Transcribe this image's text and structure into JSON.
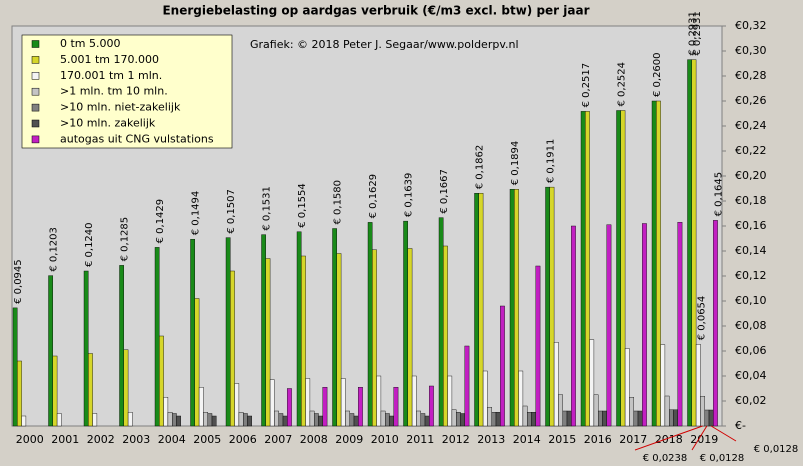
{
  "chart_data": {
    "type": "bar",
    "title": "Energiebelasting  op aardgas verbruik (€/m3 excl. btw) per jaar",
    "annotation": "Grafiek:  © 2018  Peter J. Segaar/www.polderpv.nl",
    "categories": [
      "2000",
      "2001",
      "2002",
      "2003",
      "2004",
      "2005",
      "2006",
      "2007",
      "2008",
      "2009",
      "2010",
      "2011",
      "2012",
      "2013",
      "2014",
      "2015",
      "2016",
      "2017",
      "2018",
      "2019"
    ],
    "series": [
      {
        "name": "0  tm 5.000",
        "color": "#198a19",
        "values": [
          0.0945,
          0.1203,
          0.124,
          0.1285,
          0.1429,
          0.1494,
          0.1507,
          0.1531,
          0.1554,
          0.158,
          0.1629,
          0.1639,
          0.1667,
          0.1862,
          0.1894,
          0.1911,
          0.2517,
          0.2524,
          0.26,
          0.2931
        ],
        "value_labels": [
          "€ 0,0945",
          "€ 0,1203",
          "€ 0,1240",
          "€ 0,1285",
          "€ 0,1429",
          "€ 0,1494",
          "€ 0,1507",
          "€ 0,1531",
          "€ 0,1554",
          "€ 0,1580",
          "€ 0,1629",
          "€ 0,1639",
          "€ 0,1667",
          "€ 0,1862",
          "€ 0,1894",
          "€ 0,1911",
          "€ 0,2517",
          "€ 0,2524",
          "€ 0,2600",
          "€ 0,2931"
        ]
      },
      {
        "name": "5.001 tm 170.000",
        "color": "#d6d62a",
        "values": [
          0.052,
          0.056,
          0.058,
          0.061,
          0.072,
          0.102,
          0.124,
          0.134,
          0.136,
          0.138,
          0.141,
          0.142,
          0.144,
          0.1862,
          0.1894,
          0.1911,
          0.2517,
          0.2524,
          0.26,
          0.2931
        ],
        "value_labels": [
          null,
          null,
          null,
          null,
          null,
          null,
          null,
          null,
          null,
          null,
          null,
          null,
          null,
          null,
          null,
          null,
          null,
          null,
          null,
          "€ 0,2931"
        ]
      },
      {
        "name": "170.001 tm 1 mln.",
        "color": "#f4f4f4",
        "values": [
          0.008,
          0.01,
          0.01,
          0.011,
          0.023,
          0.031,
          0.034,
          0.037,
          0.038,
          0.038,
          0.04,
          0.04,
          0.04,
          0.044,
          0.044,
          0.067,
          0.069,
          0.062,
          0.065,
          0.0654
        ],
        "value_labels": [
          null,
          null,
          null,
          null,
          null,
          null,
          null,
          null,
          null,
          null,
          null,
          null,
          null,
          null,
          null,
          null,
          null,
          null,
          null,
          "€ 0,0654"
        ]
      },
      {
        "name": ">1 mln. tm 10 mln.",
        "color": "#c4c4c4",
        "values": [
          null,
          null,
          null,
          null,
          0.011,
          0.011,
          0.011,
          0.012,
          0.012,
          0.012,
          0.012,
          0.012,
          0.013,
          0.015,
          0.016,
          0.025,
          0.025,
          0.023,
          0.024,
          0.0238
        ],
        "value_labels": [
          null,
          null,
          null,
          null,
          null,
          null,
          null,
          null,
          null,
          null,
          null,
          null,
          null,
          null,
          null,
          null,
          null,
          null,
          null,
          "€ 0,0238"
        ]
      },
      {
        "name": ">10 mln. niet-zakelijk",
        "color": "#808080",
        "values": [
          null,
          null,
          null,
          null,
          0.01,
          0.01,
          0.01,
          0.01,
          0.01,
          0.01,
          0.01,
          0.01,
          0.011,
          0.011,
          0.011,
          0.012,
          0.012,
          0.012,
          0.013,
          0.0128
        ],
        "value_labels": [
          null,
          null,
          null,
          null,
          null,
          null,
          null,
          null,
          null,
          null,
          null,
          null,
          null,
          null,
          null,
          null,
          null,
          null,
          null,
          "€ 0,0128"
        ]
      },
      {
        "name": ">10 mln. zakelijk",
        "color": "#505050",
        "values": [
          null,
          null,
          null,
          null,
          0.008,
          0.008,
          0.008,
          0.008,
          0.008,
          0.008,
          0.008,
          0.008,
          0.01,
          0.011,
          0.011,
          0.012,
          0.012,
          0.012,
          0.013,
          0.0128
        ],
        "value_labels": [
          null,
          null,
          null,
          null,
          null,
          null,
          null,
          null,
          null,
          null,
          null,
          null,
          null,
          null,
          null,
          null,
          null,
          null,
          null,
          "€ 0,0128"
        ]
      },
      {
        "name": "autogas uit CNG vulstations",
        "color": "#c21fc2",
        "values": [
          null,
          null,
          null,
          null,
          null,
          null,
          null,
          0.03,
          0.031,
          0.031,
          0.031,
          0.032,
          0.064,
          0.096,
          0.128,
          0.16,
          0.161,
          0.162,
          0.163,
          0.1645
        ],
        "value_labels": [
          null,
          null,
          null,
          null,
          null,
          null,
          null,
          null,
          null,
          null,
          null,
          null,
          null,
          null,
          null,
          null,
          null,
          null,
          null,
          "€ 0,1645"
        ]
      }
    ],
    "ylim": [
      0,
      0.32
    ],
    "yticks": [
      {
        "value": 0,
        "label": "€-"
      },
      {
        "value": 0.02,
        "label": "€0,02"
      },
      {
        "value": 0.04,
        "label": "€0,04"
      },
      {
        "value": 0.06,
        "label": "€0,06"
      },
      {
        "value": 0.08,
        "label": "€0,08"
      },
      {
        "value": 0.1,
        "label": "€0,10"
      },
      {
        "value": 0.12,
        "label": "€0,12"
      },
      {
        "value": 0.14,
        "label": "€0,14"
      },
      {
        "value": 0.16,
        "label": "€0,16"
      },
      {
        "value": 0.18,
        "label": "€0,18"
      },
      {
        "value": 0.2,
        "label": "€0,20"
      },
      {
        "value": 0.22,
        "label": "€0,22"
      },
      {
        "value": 0.24,
        "label": "€0,24"
      },
      {
        "value": 0.26,
        "label": "€0,26"
      },
      {
        "value": 0.28,
        "label": "€0,28"
      },
      {
        "value": 0.3,
        "label": "€0,30"
      },
      {
        "value": 0.32,
        "label": "€0,32"
      }
    ],
    "grid": false,
    "legend": "upper left"
  }
}
